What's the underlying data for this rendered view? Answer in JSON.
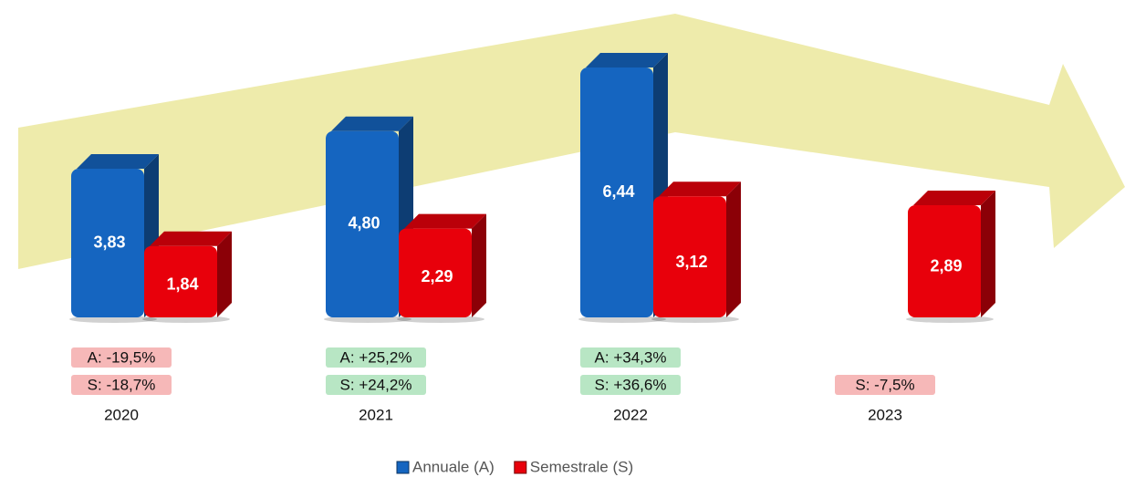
{
  "chart_data": {
    "type": "bar3d",
    "categories": [
      "2020",
      "2021",
      "2022",
      "2023"
    ],
    "series": [
      {
        "name": "Annuale (A)",
        "color": "#1565c0",
        "values": [
          3.83,
          4.8,
          6.44,
          null
        ],
        "value_labels": [
          "3,83",
          "4,80",
          "6,44",
          null
        ]
      },
      {
        "name": "Semestrale (S)",
        "color": "#e8000b",
        "values": [
          1.84,
          2.29,
          3.12,
          2.89
        ],
        "value_labels": [
          "1,84",
          "2,29",
          "3,12",
          "2,89"
        ]
      }
    ],
    "annotations": [
      [
        {
          "text": "A: -19,5%",
          "color": "#f6b8b8"
        },
        {
          "text": "S: -18,7%",
          "color": "#f6b8b8"
        }
      ],
      [
        {
          "text": "A: +25,2%",
          "color": "#b8e6c4"
        },
        {
          "text": "S: +24,2%",
          "color": "#b8e6c4"
        }
      ],
      [
        {
          "text": "A: +34,3%",
          "color": "#b8e6c4"
        },
        {
          "text": "S: +36,6%",
          "color": "#b8e6c4"
        }
      ],
      [
        {
          "text": "S: -7,5%",
          "color": "#f6b8b8"
        }
      ]
    ]
  }
}
